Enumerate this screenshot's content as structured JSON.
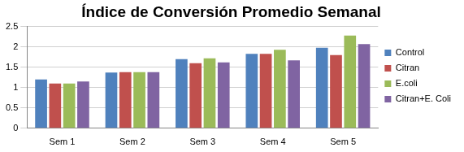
{
  "chart_data": {
    "type": "bar",
    "title": "Índice de Conversión Promedio Semanal",
    "categories": [
      "Sem 1",
      "Sem 2",
      "Sem 3",
      "Sem 4",
      "Sem 5"
    ],
    "series": [
      {
        "name": "Control",
        "color": "#4f81bd",
        "values": [
          1.2,
          1.37,
          1.7,
          1.83,
          1.98
        ]
      },
      {
        "name": "Citran",
        "color": "#c0504d",
        "values": [
          1.1,
          1.38,
          1.6,
          1.83,
          1.8
        ]
      },
      {
        "name": "E.coli",
        "color": "#9bbb59",
        "values": [
          1.1,
          1.38,
          1.72,
          1.93,
          2.28
        ]
      },
      {
        "name": "Citran+E. Coli",
        "color": "#8064a2",
        "values": [
          1.15,
          1.38,
          1.62,
          1.67,
          2.07
        ]
      }
    ],
    "ylim": [
      0,
      2.5
    ],
    "yticks": [
      0,
      0.5,
      1,
      1.5,
      2,
      2.5
    ],
    "grid": true,
    "legend": "right"
  }
}
